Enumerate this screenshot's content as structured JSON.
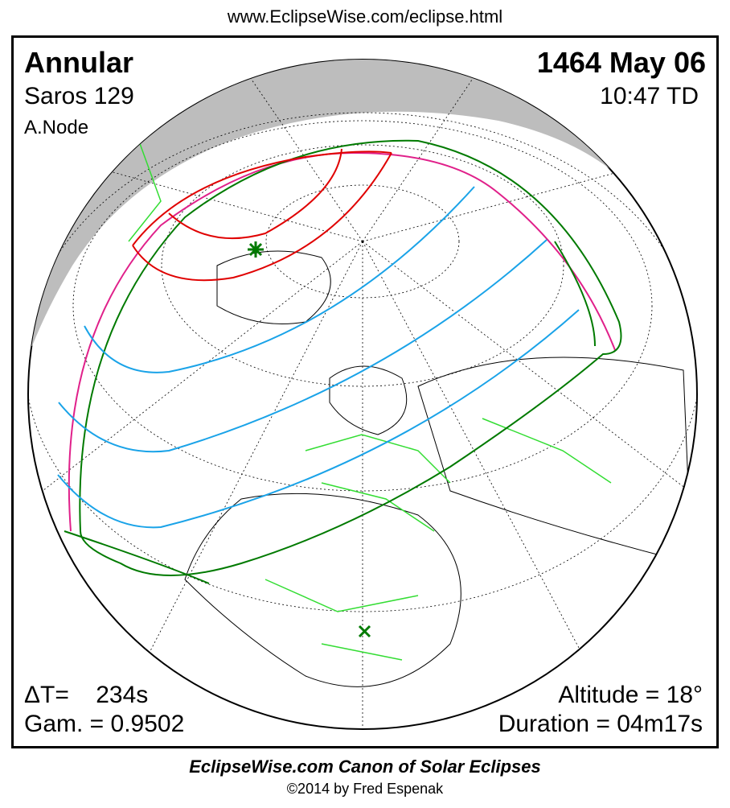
{
  "header": {
    "url": "www.EclipseWise.com/eclipse.html"
  },
  "eclipse": {
    "type": "Annular",
    "saros": "Saros 129",
    "node": "A.Node",
    "date": "1464 May 06",
    "time": "10:47 TD",
    "delta_t": "ΔT=    234s",
    "gamma": "Gam. = 0.9502",
    "altitude": "Altitude = 18°",
    "duration": "Duration = 04m17s"
  },
  "map": {
    "colors": {
      "night": "#bdbdbd",
      "central_path": "#e00000",
      "penumbra_limit": "#e0208a",
      "outline": "#007a00",
      "magnitude_lines": "#1aa3e8",
      "borders": "#33dd33",
      "coast": "#000000"
    },
    "markers": [
      "greatest-eclipse-star",
      "sub-solar-x"
    ]
  },
  "footer": {
    "title": "EclipseWise.com Canon of Solar Eclipses",
    "copyright": "©2014 by Fred Espenak"
  }
}
